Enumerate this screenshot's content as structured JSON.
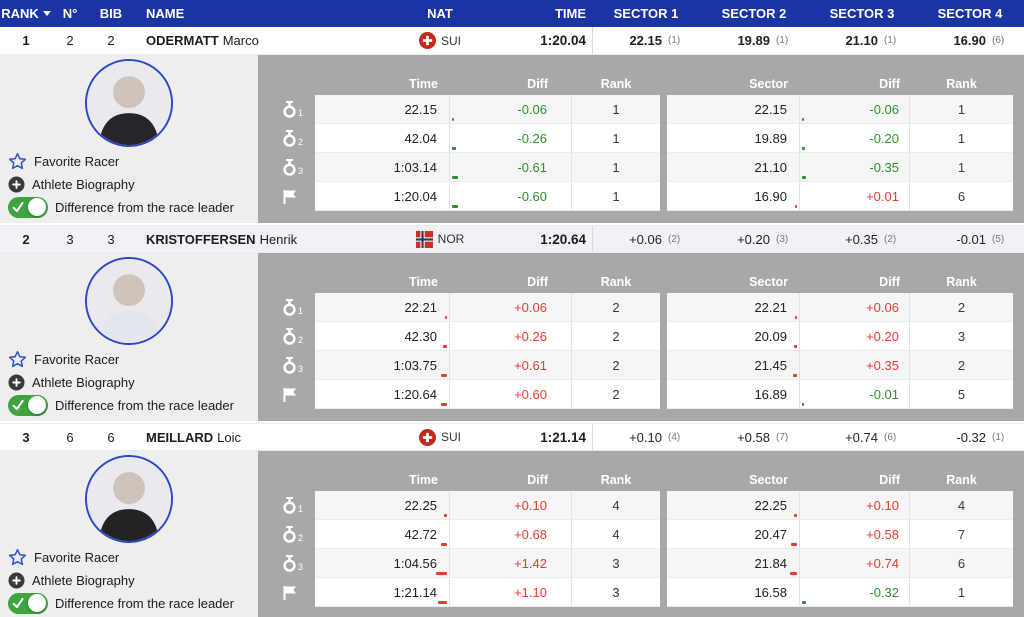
{
  "colors": {
    "header_blue": "#1a35a3",
    "positive_red": "#e73c30",
    "negative_green": "#2f8f2f",
    "panel_gray": "#a8a8a8",
    "left_panel_gray": "#eeeeef",
    "toggle_green": "#3fa33f",
    "accent_blue": "#3353cc",
    "alt_row": "#f1f1f6"
  },
  "header": {
    "rank": "RANK",
    "number": "N°",
    "bib": "BIB",
    "name": "NAME",
    "nat": "NAT",
    "time": "TIME",
    "sectors": [
      "SECTOR 1",
      "SECTOR 2",
      "SECTOR 3",
      "SECTOR 4"
    ]
  },
  "left_panel": {
    "favorite": "Favorite Racer",
    "biography": "Athlete Biography",
    "difference": "Difference from the race leader"
  },
  "detail": {
    "time": "Time",
    "diff": "Diff",
    "rank": "Rank",
    "sector": "Sector",
    "intermediates": [
      "1",
      "2",
      "3"
    ]
  },
  "racers": [
    {
      "rank": "1",
      "number": "2",
      "bib": "2",
      "last_name": "ODERMATT",
      "first_name": "Marco",
      "nation": "SUI",
      "flag": "sui",
      "time": "1:20.04",
      "avatar_shirt": "#26262a",
      "sectors": [
        {
          "value": "22.15",
          "rank": "(1)"
        },
        {
          "value": "19.89",
          "rank": "(1)"
        },
        {
          "value": "21.10",
          "rank": "(1)"
        },
        {
          "value": "16.90",
          "rank": "(6)"
        }
      ],
      "splits": [
        {
          "time": "22.15",
          "time_diff": "-0.06",
          "time_rank": "1",
          "sector": "22.15",
          "sector_diff": "-0.06",
          "sector_rank": "1"
        },
        {
          "time": "42.04",
          "time_diff": "-0.26",
          "time_rank": "1",
          "sector": "19.89",
          "sector_diff": "-0.20",
          "sector_rank": "1"
        },
        {
          "time": "1:03.14",
          "time_diff": "-0.61",
          "time_rank": "1",
          "sector": "21.10",
          "sector_diff": "-0.35",
          "sector_rank": "1"
        },
        {
          "time": "1:20.04",
          "time_diff": "-0.60",
          "time_rank": "1",
          "sector": "16.90",
          "sector_diff": "+0.01",
          "sector_rank": "6"
        }
      ]
    },
    {
      "rank": "2",
      "number": "3",
      "bib": "3",
      "last_name": "KRISTOFFERSEN",
      "first_name": "Henrik",
      "nation": "NOR",
      "flag": "nor",
      "time": "1:20.64",
      "avatar_shirt": "#e3e6ec",
      "sectors": [
        {
          "value": "+0.06",
          "rank": "(2)"
        },
        {
          "value": "+0.20",
          "rank": "(3)"
        },
        {
          "value": "+0.35",
          "rank": "(2)"
        },
        {
          "value": "-0.01",
          "rank": "(5)"
        }
      ],
      "splits": [
        {
          "time": "22.21",
          "time_diff": "+0.06",
          "time_rank": "2",
          "sector": "22.21",
          "sector_diff": "+0.06",
          "sector_rank": "2"
        },
        {
          "time": "42.30",
          "time_diff": "+0.26",
          "time_rank": "2",
          "sector": "20.09",
          "sector_diff": "+0.20",
          "sector_rank": "3"
        },
        {
          "time": "1:03.75",
          "time_diff": "+0.61",
          "time_rank": "2",
          "sector": "21.45",
          "sector_diff": "+0.35",
          "sector_rank": "2"
        },
        {
          "time": "1:20.64",
          "time_diff": "+0.60",
          "time_rank": "2",
          "sector": "16.89",
          "sector_diff": "-0.01",
          "sector_rank": "5"
        }
      ]
    },
    {
      "rank": "3",
      "number": "6",
      "bib": "6",
      "last_name": "MEILLARD",
      "first_name": "Loic",
      "nation": "SUI",
      "flag": "sui",
      "time": "1:21.14",
      "avatar_shirt": "#232326",
      "sectors": [
        {
          "value": "+0.10",
          "rank": "(4)"
        },
        {
          "value": "+0.58",
          "rank": "(7)"
        },
        {
          "value": "+0.74",
          "rank": "(6)"
        },
        {
          "value": "-0.32",
          "rank": "(1)"
        }
      ],
      "splits": [
        {
          "time": "22.25",
          "time_diff": "+0.10",
          "time_rank": "4",
          "sector": "22.25",
          "sector_diff": "+0.10",
          "sector_rank": "4"
        },
        {
          "time": "42.72",
          "time_diff": "+0.68",
          "time_rank": "4",
          "sector": "20.47",
          "sector_diff": "+0.58",
          "sector_rank": "7"
        },
        {
          "time": "1:04.56",
          "time_diff": "+1.42",
          "time_rank": "3",
          "sector": "21.84",
          "sector_diff": "+0.74",
          "sector_rank": "6"
        },
        {
          "time": "1:21.14",
          "time_diff": "+1.10",
          "time_rank": "3",
          "sector": "16.58",
          "sector_diff": "-0.32",
          "sector_rank": "1"
        }
      ]
    }
  ]
}
